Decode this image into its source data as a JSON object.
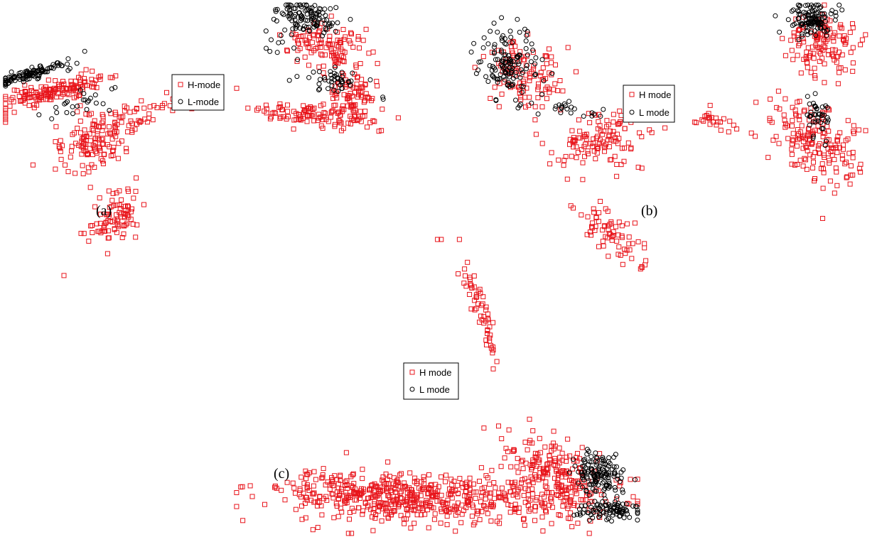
{
  "chart_data": [
    {
      "type": "scatter",
      "panel_label": "(a)",
      "legend": {
        "placement": "center",
        "entries": [
          "H-mode",
          "L-mode"
        ]
      },
      "colors": {
        "H": "#e8141b",
        "L": "#000000"
      },
      "series": [
        {
          "name": "H-mode",
          "marker": "square",
          "clusters": [
            {
              "cx": 0.13,
              "cy": 0.3,
              "sx": 0.07,
              "sy": 0.03,
              "rho": -0.85,
              "n": 150
            },
            {
              "cx": 0.23,
              "cy": 0.47,
              "sx": 0.05,
              "sy": 0.055,
              "rho": -0.3,
              "n": 140
            },
            {
              "cx": 0.28,
              "cy": 0.74,
              "sx": 0.035,
              "sy": 0.05,
              "rho": -0.5,
              "n": 90
            },
            {
              "cx": 0.34,
              "cy": 0.41,
              "sx": 0.015,
              "sy": 0.015,
              "rho": 0.0,
              "n": 12
            },
            {
              "cx": 0.41,
              "cy": 0.34,
              "sx": 0.05,
              "sy": 0.02,
              "rho": -0.6,
              "n": 25
            },
            {
              "cx": 0.8,
              "cy": 0.14,
              "sx": 0.05,
              "sy": 0.04,
              "rho": 0.1,
              "n": 110
            },
            {
              "cx": 0.87,
              "cy": 0.33,
              "sx": 0.035,
              "sy": 0.06,
              "rho": 0.2,
              "n": 110
            },
            {
              "cx": 0.75,
              "cy": 0.38,
              "sx": 0.06,
              "sy": 0.022,
              "rho": 0.4,
              "n": 80
            }
          ]
        },
        {
          "name": "L-mode",
          "marker": "circle",
          "clusters": [
            {
              "cx": 0.07,
              "cy": 0.24,
              "sx": 0.045,
              "sy": 0.022,
              "rho": -0.85,
              "n": 110
            },
            {
              "cx": 0.19,
              "cy": 0.34,
              "sx": 0.04,
              "sy": 0.02,
              "rho": -0.5,
              "n": 25
            },
            {
              "cx": 0.76,
              "cy": 0.05,
              "sx": 0.04,
              "sy": 0.03,
              "rho": 0.3,
              "n": 110
            },
            {
              "cx": 0.82,
              "cy": 0.26,
              "sx": 0.035,
              "sy": 0.025,
              "rho": 0.4,
              "n": 45
            },
            {
              "cx": 0.69,
              "cy": 0.13,
              "sx": 0.03,
              "sy": 0.05,
              "rho": 0.0,
              "n": 15
            }
          ]
        }
      ]
    },
    {
      "type": "scatter",
      "panel_label": "(b)",
      "legend": {
        "placement": "center",
        "entries": [
          "H mode",
          "L mode"
        ]
      },
      "colors": {
        "H": "#e8141b",
        "L": "#000000"
      },
      "series": [
        {
          "name": "H mode",
          "marker": "square",
          "clusters": [
            {
              "cx": 0.14,
              "cy": 0.24,
              "sx": 0.045,
              "sy": 0.055,
              "rho": 0.2,
              "n": 110
            },
            {
              "cx": 0.32,
              "cy": 0.46,
              "sx": 0.06,
              "sy": 0.05,
              "rho": -0.2,
              "n": 120
            },
            {
              "cx": 0.35,
              "cy": 0.78,
              "sx": 0.04,
              "sy": 0.05,
              "rho": 0.7,
              "n": 70
            },
            {
              "cx": 0.87,
              "cy": 0.14,
              "sx": 0.045,
              "sy": 0.05,
              "rho": 0.0,
              "n": 130
            },
            {
              "cx": 0.85,
              "cy": 0.48,
              "sx": 0.06,
              "sy": 0.08,
              "rho": 0.5,
              "n": 170
            },
            {
              "cx": 0.6,
              "cy": 0.4,
              "sx": 0.025,
              "sy": 0.02,
              "rho": 0.0,
              "n": 25
            }
          ]
        },
        {
          "name": "L mode",
          "marker": "circle",
          "clusters": [
            {
              "cx": 0.1,
              "cy": 0.2,
              "sx": 0.035,
              "sy": 0.06,
              "rho": 0.3,
              "n": 130
            },
            {
              "cx": 0.84,
              "cy": 0.05,
              "sx": 0.03,
              "sy": 0.03,
              "rho": 0.0,
              "n": 120
            },
            {
              "cx": 0.85,
              "cy": 0.38,
              "sx": 0.015,
              "sy": 0.045,
              "rho": 0.0,
              "n": 40
            },
            {
              "cx": 0.24,
              "cy": 0.36,
              "sx": 0.05,
              "sy": 0.015,
              "rho": 0.2,
              "n": 22
            }
          ]
        }
      ]
    },
    {
      "type": "scatter",
      "panel_label": "(c)",
      "legend": {
        "placement": "center",
        "entries": [
          "H mode",
          "L mode"
        ]
      },
      "colors": {
        "H": "#e8141b",
        "L": "#000000"
      },
      "series": [
        {
          "name": "H mode",
          "marker": "square",
          "clusters": [
            {
              "cx": 0.52,
              "cy": 0.88,
              "sx": 0.2,
              "sy": 0.04,
              "rho": 0.0,
              "n": 500
            },
            {
              "cx": 0.3,
              "cy": 0.85,
              "sx": 0.1,
              "sy": 0.04,
              "rho": 0.0,
              "n": 150
            },
            {
              "cx": 0.78,
              "cy": 0.78,
              "sx": 0.06,
              "sy": 0.06,
              "rho": 0.5,
              "n": 170
            },
            {
              "cx": 0.6,
              "cy": 0.22,
              "sx": 0.03,
              "sy": 0.12,
              "rho": 0.95,
              "n": 60
            }
          ]
        },
        {
          "name": "L mode",
          "marker": "circle",
          "clusters": [
            {
              "cx": 0.9,
              "cy": 0.8,
              "sx": 0.03,
              "sy": 0.035,
              "rho": 0.2,
              "n": 140
            },
            {
              "cx": 0.92,
              "cy": 0.92,
              "sx": 0.04,
              "sy": 0.015,
              "rho": 0.0,
              "n": 90
            }
          ]
        }
      ]
    }
  ]
}
